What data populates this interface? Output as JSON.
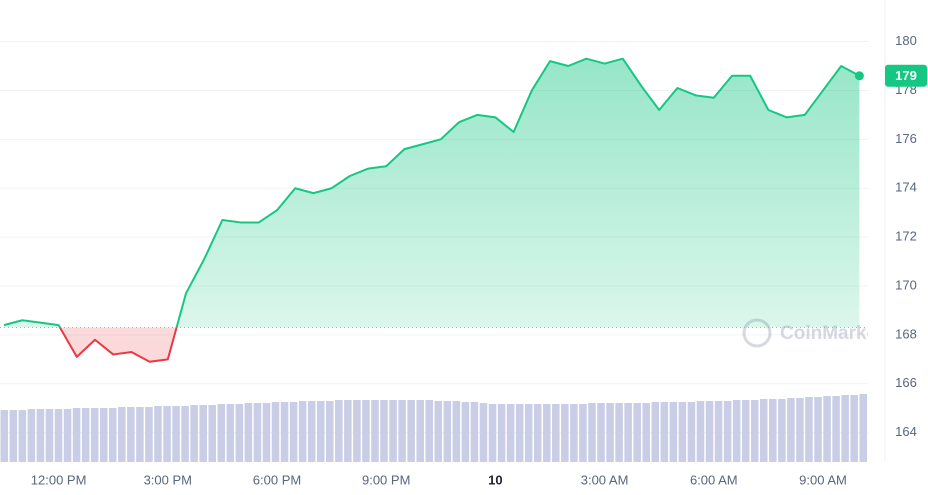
{
  "chart_data": {
    "type": "line",
    "categories": [
      null,
      null,
      null,
      "12:00 PM",
      null,
      null,
      null,
      null,
      null,
      "3:00 PM",
      null,
      null,
      null,
      null,
      null,
      "6:00 PM",
      null,
      null,
      null,
      null,
      null,
      "9:00 PM",
      null,
      null,
      null,
      null,
      null,
      "10",
      null,
      null,
      null,
      null,
      null,
      "3:00 AM",
      null,
      null,
      null,
      null,
      null,
      "6:00 AM",
      null,
      null,
      null,
      null,
      null,
      "9:00 AM",
      null,
      null
    ],
    "series": [
      {
        "values": [
          168.4,
          168.6,
          168.5,
          168.4,
          167.1,
          167.8,
          167.2,
          167.3,
          166.9,
          167.0,
          169.7,
          171.1,
          172.7,
          172.6,
          172.6,
          173.1,
          174.0,
          173.8,
          174.0,
          174.5,
          174.8,
          174.9,
          175.6,
          175.8,
          176.0,
          176.7,
          177.0,
          176.9,
          176.3,
          178.0,
          179.2,
          179.0,
          179.3,
          179.1,
          179.3,
          178.2,
          177.2,
          178.1,
          177.8,
          177.7,
          178.6,
          178.6,
          177.2,
          176.9,
          177.0,
          178.0,
          179.0,
          178.6
        ]
      }
    ],
    "up_color": "#16c784",
    "down_color": "#ea3943",
    "baseline": 168.3,
    "current_price": {
      "value": 178.6,
      "label": "179"
    },
    "ylim": [
      162.8,
      181.7
    ],
    "yticks": [
      164,
      166,
      168,
      170,
      172,
      174,
      176,
      178,
      180
    ],
    "grid": true,
    "watermark": "CoinMarketCap",
    "volume": {
      "color": "#c9cde6",
      "ylim": [
        0,
        100
      ],
      "values": [
        52,
        52,
        52,
        53,
        53,
        53,
        53,
        53,
        54,
        54,
        54,
        54,
        54,
        55,
        55,
        55,
        55,
        56,
        56,
        56,
        56,
        57,
        57,
        57,
        58,
        58,
        58,
        59,
        59,
        59,
        60,
        60,
        60,
        61,
        61,
        61,
        61,
        62,
        62,
        62,
        62,
        62,
        62,
        62,
        62,
        62,
        62,
        62,
        61,
        61,
        61,
        60,
        60,
        59,
        58,
        58,
        58,
        58,
        58,
        58,
        58,
        58,
        58,
        58,
        58,
        59,
        59,
        59,
        59,
        59,
        59,
        59,
        60,
        60,
        60,
        60,
        60,
        61,
        61,
        61,
        61,
        62,
        62,
        62,
        63,
        63,
        63,
        64,
        64,
        65,
        65,
        66,
        66,
        67,
        67,
        68
      ]
    }
  }
}
